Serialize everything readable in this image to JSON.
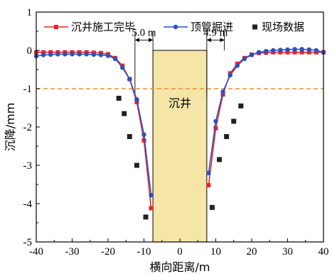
{
  "chart_data": {
    "type": "line",
    "title": "",
    "xlabel": "横向距离/m",
    "ylabel": "沉降/mm",
    "xlim": [
      -40,
      40
    ],
    "ylim": [
      -5,
      1
    ],
    "xticks": [
      -40,
      -30,
      -20,
      -10,
      0,
      10,
      20,
      30,
      40
    ],
    "yticks": [
      1,
      0,
      -1,
      -2,
      -3,
      -4,
      -5
    ],
    "xtick_labels": [
      "-40",
      "-30",
      "-20",
      "-10",
      "0",
      "10",
      "20",
      "30",
      "40"
    ],
    "ytick_labels": [
      "1",
      "0",
      "-1",
      "-2",
      "-3",
      "-4",
      "-5"
    ],
    "legend_position": "top",
    "series": [
      {
        "name": "沉井施工完毕",
        "color": "#e8232a",
        "marker": "square",
        "x": [
          -40,
          -38,
          -36,
          -34,
          -32,
          -30,
          -28,
          -26,
          -24,
          -22,
          -20,
          -18,
          -16,
          -14,
          -12,
          -10,
          -8,
          8,
          10,
          12,
          14,
          16,
          18,
          20,
          22,
          24,
          26,
          28,
          30,
          32,
          34,
          36,
          38,
          40
        ],
        "y": [
          -0.05,
          -0.05,
          -0.05,
          -0.05,
          -0.05,
          -0.05,
          -0.05,
          -0.05,
          -0.06,
          -0.07,
          -0.1,
          -0.2,
          -0.4,
          -0.75,
          -1.35,
          -2.35,
          -4.12,
          -3.52,
          -2.03,
          -1.15,
          -0.6,
          -0.35,
          -0.2,
          -0.11,
          -0.07,
          -0.06,
          -0.05,
          -0.05,
          -0.05,
          -0.05,
          -0.05,
          -0.05,
          -0.05,
          -0.05
        ]
      },
      {
        "name": "顶管掘进",
        "color": "#2a52be",
        "marker": "circle",
        "x": [
          -40,
          -38,
          -36,
          -34,
          -32,
          -30,
          -28,
          -26,
          -24,
          -22,
          -20,
          -18,
          -16,
          -14,
          -12,
          -10,
          -8,
          8,
          10,
          12,
          14,
          16,
          18,
          20,
          22,
          24,
          26,
          28,
          30,
          32,
          34,
          36,
          38,
          40
        ],
        "y": [
          -0.15,
          -0.12,
          -0.11,
          -0.1,
          -0.1,
          -0.1,
          -0.1,
          -0.1,
          -0.11,
          -0.12,
          -0.14,
          -0.22,
          -0.45,
          -0.75,
          -1.28,
          -2.2,
          -3.78,
          -3.2,
          -1.85,
          -1.08,
          -0.65,
          -0.4,
          -0.22,
          -0.12,
          -0.05,
          -0.02,
          0.0,
          0.01,
          0.02,
          0.03,
          0.03,
          0.02,
          0.0,
          -0.05
        ]
      },
      {
        "name": "现场数据",
        "color": "#222222",
        "marker": "square",
        "style": "scatter",
        "x": [
          -17,
          -15.5,
          -14,
          -12,
          -9.5,
          9,
          11,
          13,
          15,
          17
        ],
        "y": [
          -1.25,
          -1.65,
          -2.25,
          -3.0,
          -4.35,
          -4.1,
          -2.85,
          -2.25,
          -1.85,
          -1.45
        ]
      }
    ],
    "reference_line": {
      "y": -1,
      "color": "#f08a30",
      "style": "dashed"
    },
    "shaded_region": {
      "x": [
        -7.5,
        7.5
      ],
      "label": "沉井",
      "color": "#f5e6a8"
    },
    "annotations": [
      {
        "text": "5.0 m",
        "x_from": -12.5,
        "x_to": -7.5
      },
      {
        "text": "4.9 m",
        "x_from": 7.5,
        "x_to": 12.4
      }
    ]
  }
}
